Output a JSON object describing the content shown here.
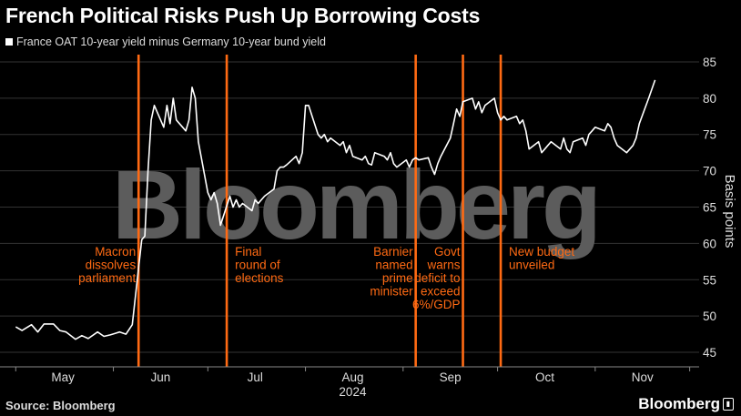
{
  "chart_data": {
    "type": "line",
    "title": "French Political Risks Push Up Borrowing Costs",
    "series": [
      {
        "name": "France OAT 10-year yield minus Germany 10-year bund yield",
        "color": "#ffffff",
        "points": [
          [
            "2024-05-01",
            48.5
          ],
          [
            "2024-05-03",
            48.0
          ],
          [
            "2024-05-06",
            48.8
          ],
          [
            "2024-05-08",
            47.8
          ],
          [
            "2024-05-10",
            48.9
          ],
          [
            "2024-05-13",
            48.9
          ],
          [
            "2024-05-15",
            48.0
          ],
          [
            "2024-05-17",
            47.8
          ],
          [
            "2024-05-20",
            46.8
          ],
          [
            "2024-05-22",
            47.3
          ],
          [
            "2024-05-24",
            46.9
          ],
          [
            "2024-05-27",
            47.8
          ],
          [
            "2024-05-29",
            47.2
          ],
          [
            "2024-05-31",
            47.4
          ],
          [
            "2024-06-03",
            47.8
          ],
          [
            "2024-06-05",
            47.5
          ],
          [
            "2024-06-07",
            48.8
          ],
          [
            "2024-06-10",
            60.5
          ],
          [
            "2024-06-11",
            61.0
          ],
          [
            "2024-06-12",
            70.0
          ],
          [
            "2024-06-13",
            77.0
          ],
          [
            "2024-06-14",
            79.0
          ],
          [
            "2024-06-17",
            76.0
          ],
          [
            "2024-06-18",
            79.0
          ],
          [
            "2024-06-19",
            76.5
          ],
          [
            "2024-06-20",
            80.0
          ],
          [
            "2024-06-21",
            77.0
          ],
          [
            "2024-06-24",
            75.5
          ],
          [
            "2024-06-25",
            77.0
          ],
          [
            "2024-06-26",
            81.5
          ],
          [
            "2024-06-27",
            80.0
          ],
          [
            "2024-06-28",
            74.0
          ],
          [
            "2024-07-01",
            67.0
          ],
          [
            "2024-07-02",
            66.0
          ],
          [
            "2024-07-03",
            67.0
          ],
          [
            "2024-07-04",
            65.5
          ],
          [
            "2024-07-05",
            62.5
          ],
          [
            "2024-07-08",
            66.5
          ],
          [
            "2024-07-09",
            65.0
          ],
          [
            "2024-07-10",
            66.0
          ],
          [
            "2024-07-11",
            65.0
          ],
          [
            "2024-07-12",
            65.5
          ],
          [
            "2024-07-15",
            64.5
          ],
          [
            "2024-07-16",
            66.0
          ],
          [
            "2024-07-17",
            65.5
          ],
          [
            "2024-07-18",
            66.0
          ],
          [
            "2024-07-19",
            66.5
          ],
          [
            "2024-07-22",
            67.5
          ],
          [
            "2024-07-23",
            70.0
          ],
          [
            "2024-07-24",
            70.5
          ],
          [
            "2024-07-25",
            70.5
          ],
          [
            "2024-07-26",
            70.8
          ],
          [
            "2024-07-29",
            72.0
          ],
          [
            "2024-07-30",
            71.0
          ],
          [
            "2024-07-31",
            72.5
          ],
          [
            "2024-08-01",
            79.0
          ],
          [
            "2024-08-02",
            79.0
          ],
          [
            "2024-08-05",
            75.0
          ],
          [
            "2024-08-06",
            74.5
          ],
          [
            "2024-08-07",
            75.0
          ],
          [
            "2024-08-08",
            74.0
          ],
          [
            "2024-08-09",
            74.5
          ],
          [
            "2024-08-12",
            73.5
          ],
          [
            "2024-08-13",
            74.0
          ],
          [
            "2024-08-14",
            72.5
          ],
          [
            "2024-08-15",
            73.5
          ],
          [
            "2024-08-16",
            72.0
          ],
          [
            "2024-08-19",
            71.5
          ],
          [
            "2024-08-20",
            72.0
          ],
          [
            "2024-08-21",
            71.0
          ],
          [
            "2024-08-22",
            70.8
          ],
          [
            "2024-08-23",
            72.5
          ],
          [
            "2024-08-26",
            72.0
          ],
          [
            "2024-08-27",
            71.5
          ],
          [
            "2024-08-28",
            72.5
          ],
          [
            "2024-08-29",
            71.0
          ],
          [
            "2024-08-30",
            70.5
          ],
          [
            "2024-09-02",
            71.5
          ],
          [
            "2024-09-03",
            70.5
          ],
          [
            "2024-09-04",
            71.5
          ],
          [
            "2024-09-05",
            71.8
          ],
          [
            "2024-09-06",
            71.5
          ],
          [
            "2024-09-09",
            71.8
          ],
          [
            "2024-09-10",
            70.5
          ],
          [
            "2024-09-11",
            69.5
          ],
          [
            "2024-09-12",
            71.0
          ],
          [
            "2024-09-13",
            72.0
          ],
          [
            "2024-09-16",
            74.5
          ],
          [
            "2024-09-17",
            76.5
          ],
          [
            "2024-09-18",
            78.5
          ],
          [
            "2024-09-19",
            77.5
          ],
          [
            "2024-09-20",
            79.5
          ],
          [
            "2024-09-23",
            80.0
          ],
          [
            "2024-09-24",
            78.5
          ],
          [
            "2024-09-25",
            79.5
          ],
          [
            "2024-09-26",
            78.0
          ],
          [
            "2024-09-27",
            79.0
          ],
          [
            "2024-09-30",
            80.0
          ],
          [
            "2024-10-01",
            78.0
          ],
          [
            "2024-10-02",
            77.0
          ],
          [
            "2024-10-03",
            77.5
          ],
          [
            "2024-10-04",
            77.0
          ],
          [
            "2024-10-07",
            77.5
          ],
          [
            "2024-10-08",
            76.5
          ],
          [
            "2024-10-09",
            77.0
          ],
          [
            "2024-10-10",
            75.5
          ],
          [
            "2024-10-11",
            73.0
          ],
          [
            "2024-10-14",
            74.0
          ],
          [
            "2024-10-15",
            72.5
          ],
          [
            "2024-10-16",
            73.0
          ],
          [
            "2024-10-17",
            73.5
          ],
          [
            "2024-10-18",
            74.0
          ],
          [
            "2024-10-21",
            73.0
          ],
          [
            "2024-10-22",
            74.5
          ],
          [
            "2024-10-23",
            73.0
          ],
          [
            "2024-10-24",
            72.5
          ],
          [
            "2024-10-25",
            74.0
          ],
          [
            "2024-10-28",
            74.5
          ],
          [
            "2024-10-29",
            73.5
          ],
          [
            "2024-10-30",
            75.0
          ],
          [
            "2024-10-31",
            75.5
          ],
          [
            "2024-11-01",
            76.0
          ],
          [
            "2024-11-04",
            75.5
          ],
          [
            "2024-11-05",
            76.5
          ],
          [
            "2024-11-06",
            76.0
          ],
          [
            "2024-11-07",
            74.5
          ],
          [
            "2024-11-08",
            73.5
          ],
          [
            "2024-11-11",
            72.5
          ],
          [
            "2024-11-12",
            73.0
          ],
          [
            "2024-11-13",
            73.5
          ],
          [
            "2024-11-14",
            74.5
          ],
          [
            "2024-11-15",
            76.5
          ],
          [
            "2024-11-18",
            80.0
          ],
          [
            "2024-11-20",
            82.5
          ]
        ]
      }
    ],
    "ylabel": "Basis points",
    "yticks": [
      45,
      50,
      55,
      60,
      65,
      70,
      75,
      80,
      85
    ],
    "ylim": [
      43,
      86
    ],
    "xlim": [
      "2024-04-26",
      "2024-12-04"
    ],
    "x_month_ticks": [
      "2024-05-01",
      "2024-06-01",
      "2024-07-01",
      "2024-08-01",
      "2024-09-01",
      "2024-10-01",
      "2024-11-01",
      "2024-12-01"
    ],
    "x_month_labels": [
      [
        "May",
        "2024-05-16"
      ],
      [
        "Jun",
        "2024-06-16"
      ],
      [
        "Jul",
        "2024-07-16"
      ],
      [
        "Aug",
        "2024-08-16"
      ],
      [
        "Sep",
        "2024-09-16"
      ],
      [
        "Oct",
        "2024-10-16"
      ],
      [
        "Nov",
        "2024-11-16"
      ]
    ],
    "year_label": [
      "2024",
      "2024-08-16"
    ],
    "grid": "horizontal",
    "legend": "top-left",
    "annotations": [
      {
        "date": "2024-06-09",
        "text": [
          "Macron",
          "dissolves",
          "parliament"
        ],
        "align": "right"
      },
      {
        "date": "2024-07-07",
        "text": [
          "Final",
          "round of",
          "elections"
        ],
        "align": "left"
      },
      {
        "date": "2024-09-05",
        "text": [
          "Barnier",
          "named",
          "prime",
          "minister"
        ],
        "align": "right"
      },
      {
        "date": "2024-09-20",
        "text": [
          "Govt",
          "warns",
          "deficit to",
          "exceed",
          "6%/GDP"
        ],
        "align": "right"
      },
      {
        "date": "2024-10-02",
        "text": [
          "New budget",
          "unveiled"
        ],
        "align": "left"
      }
    ],
    "watermark": "Bloomberg",
    "event_line_color": "#ff6a13",
    "annotation_color": "#ff6a13"
  },
  "footer": {
    "source": "Source: Bloomberg",
    "logo": "Bloomberg"
  }
}
